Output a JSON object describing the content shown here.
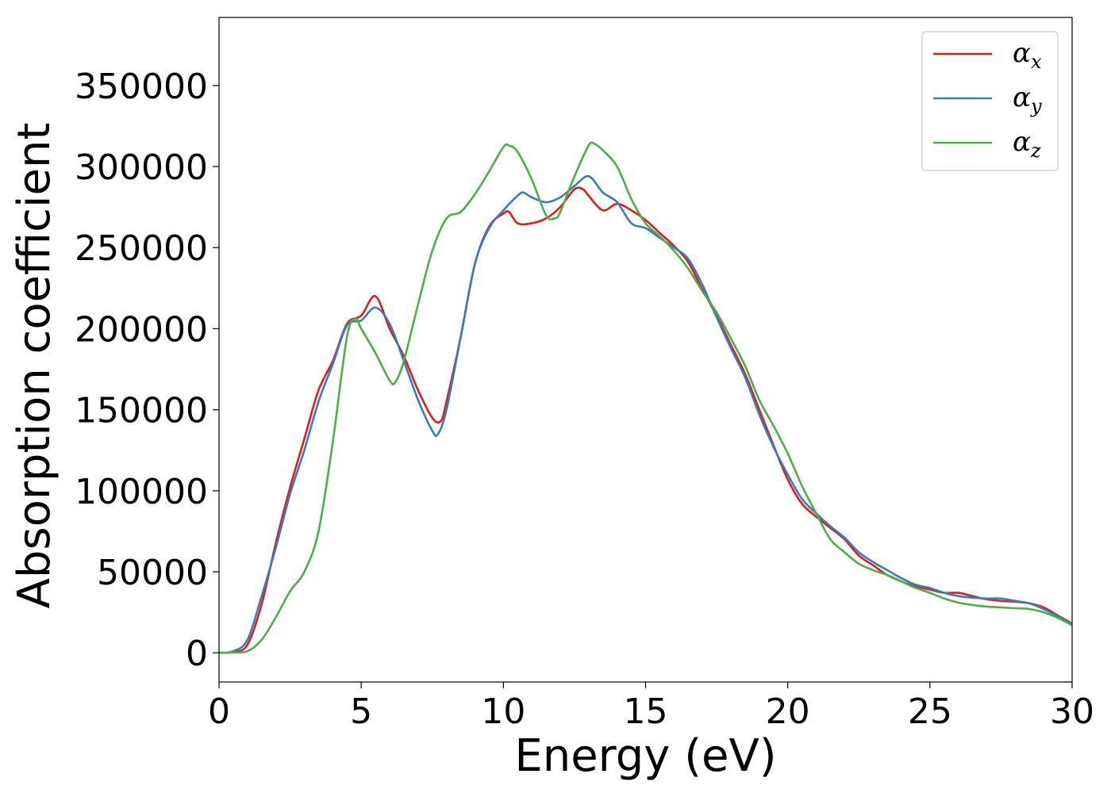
{
  "chart_data": {
    "type": "line",
    "title": "",
    "xlabel": "Energy (eV)",
    "ylabel": "Absorption coefficient",
    "xlim": [
      0,
      30
    ],
    "ylim": [
      -18000,
      392000
    ],
    "xticks": [
      0,
      5,
      10,
      15,
      20,
      25,
      30
    ],
    "xtick_labels": [
      "0",
      "5",
      "10",
      "15",
      "20",
      "25",
      "30"
    ],
    "yticks": [
      0,
      50000,
      100000,
      150000,
      200000,
      250000,
      300000,
      350000
    ],
    "ytick_labels": [
      "0",
      "50000",
      "100000",
      "150000",
      "200000",
      "250000",
      "300000",
      "350000"
    ],
    "grid": false,
    "legend_position": "top-right",
    "series": [
      {
        "name": "α_x",
        "legend_symbol": "α",
        "legend_subscript": "x",
        "color": "#e41a1c",
        "points": [
          [
            0,
            0
          ],
          [
            0.5,
            500
          ],
          [
            1,
            5000
          ],
          [
            1.5,
            30000
          ],
          [
            2,
            68000
          ],
          [
            2.5,
            102000
          ],
          [
            3,
            132000
          ],
          [
            3.5,
            162000
          ],
          [
            4,
            180000
          ],
          [
            4.5,
            203000
          ],
          [
            5,
            208000
          ],
          [
            5.5,
            220000
          ],
          [
            6,
            200000
          ],
          [
            6.5,
            183000
          ],
          [
            7,
            162000
          ],
          [
            7.5,
            145000
          ],
          [
            7.8,
            143000
          ],
          [
            8,
            155000
          ],
          [
            8.5,
            195000
          ],
          [
            9,
            240000
          ],
          [
            9.5,
            263000
          ],
          [
            10,
            271000
          ],
          [
            10.2,
            272000
          ],
          [
            10.5,
            265000
          ],
          [
            11,
            265000
          ],
          [
            11.5,
            268000
          ],
          [
            12,
            275000
          ],
          [
            12.5,
            286000
          ],
          [
            12.8,
            286000
          ],
          [
            13,
            282000
          ],
          [
            13.5,
            273000
          ],
          [
            14,
            277000
          ],
          [
            14.5,
            273000
          ],
          [
            15,
            267000
          ],
          [
            15.5,
            259000
          ],
          [
            16,
            251000
          ],
          [
            16.5,
            241000
          ],
          [
            17,
            224000
          ],
          [
            17.5,
            208000
          ],
          [
            18,
            190000
          ],
          [
            18.5,
            172000
          ],
          [
            19,
            150000
          ],
          [
            19.5,
            128000
          ],
          [
            20,
            107000
          ],
          [
            20.5,
            92000
          ],
          [
            21,
            84000
          ],
          [
            21.5,
            77000
          ],
          [
            22,
            70000
          ],
          [
            22.5,
            60000
          ],
          [
            23,
            54000
          ],
          [
            23.5,
            48000
          ],
          [
            24,
            44000
          ],
          [
            24.5,
            41000
          ],
          [
            25,
            39000
          ],
          [
            25.5,
            37000
          ],
          [
            26,
            37000
          ],
          [
            26.5,
            35000
          ],
          [
            27,
            33000
          ],
          [
            27.5,
            32000
          ],
          [
            28,
            31500
          ],
          [
            28.5,
            30500
          ],
          [
            29,
            28000
          ],
          [
            29.5,
            23000
          ],
          [
            30,
            18000
          ]
        ]
      },
      {
        "name": "α_y",
        "legend_symbol": "α",
        "legend_subscript": "y",
        "color": "#377eb8",
        "points": [
          [
            0,
            0
          ],
          [
            0.5,
            1000
          ],
          [
            1,
            8000
          ],
          [
            1.5,
            35000
          ],
          [
            2,
            65000
          ],
          [
            2.5,
            98000
          ],
          [
            3,
            125000
          ],
          [
            3.5,
            155000
          ],
          [
            4,
            178000
          ],
          [
            4.5,
            202000
          ],
          [
            5,
            205000
          ],
          [
            5.5,
            213000
          ],
          [
            6,
            203000
          ],
          [
            6.5,
            180000
          ],
          [
            7,
            156000
          ],
          [
            7.5,
            137000
          ],
          [
            7.7,
            135000
          ],
          [
            8,
            150000
          ],
          [
            8.5,
            195000
          ],
          [
            9,
            240000
          ],
          [
            9.5,
            262000
          ],
          [
            10,
            273000
          ],
          [
            10.5,
            282000
          ],
          [
            10.7,
            284000
          ],
          [
            11,
            281000
          ],
          [
            11.5,
            278000
          ],
          [
            12,
            281000
          ],
          [
            12.5,
            288000
          ],
          [
            13,
            294000
          ],
          [
            13.5,
            284000
          ],
          [
            14,
            278000
          ],
          [
            14.5,
            265000
          ],
          [
            15,
            262000
          ],
          [
            15.5,
            256000
          ],
          [
            16,
            250000
          ],
          [
            16.5,
            243000
          ],
          [
            17,
            227000
          ],
          [
            17.5,
            207000
          ],
          [
            18,
            188000
          ],
          [
            18.5,
            170000
          ],
          [
            19,
            147000
          ],
          [
            19.5,
            127000
          ],
          [
            20,
            110000
          ],
          [
            20.5,
            95000
          ],
          [
            21,
            86000
          ],
          [
            21.5,
            78000
          ],
          [
            22,
            71000
          ],
          [
            22.5,
            62000
          ],
          [
            23,
            56000
          ],
          [
            23.5,
            51000
          ],
          [
            24,
            46000
          ],
          [
            24.5,
            42000
          ],
          [
            25,
            40000
          ],
          [
            25.5,
            37000
          ],
          [
            26,
            35000
          ],
          [
            26.5,
            34000
          ],
          [
            27,
            33500
          ],
          [
            27.5,
            33500
          ],
          [
            28,
            32000
          ],
          [
            28.5,
            30500
          ],
          [
            29,
            27000
          ],
          [
            29.5,
            22500
          ],
          [
            30,
            17500
          ]
        ]
      },
      {
        "name": "α_z",
        "legend_symbol": "α",
        "legend_subscript": "z",
        "color": "#4daf4a",
        "points": [
          [
            0,
            0
          ],
          [
            0.5,
            200
          ],
          [
            1,
            1000
          ],
          [
            1.5,
            8000
          ],
          [
            2,
            22000
          ],
          [
            2.5,
            38000
          ],
          [
            3,
            50000
          ],
          [
            3.5,
            75000
          ],
          [
            4,
            130000
          ],
          [
            4.5,
            195000
          ],
          [
            4.8,
            206000
          ],
          [
            5,
            200000
          ],
          [
            5.5,
            185000
          ],
          [
            6,
            168000
          ],
          [
            6.2,
            167000
          ],
          [
            6.5,
            180000
          ],
          [
            7,
            215000
          ],
          [
            7.5,
            248000
          ],
          [
            8,
            268000
          ],
          [
            8.5,
            272000
          ],
          [
            9,
            283000
          ],
          [
            9.5,
            297000
          ],
          [
            10,
            312000
          ],
          [
            10.2,
            313000
          ],
          [
            10.5,
            309000
          ],
          [
            11,
            292000
          ],
          [
            11.5,
            270000
          ],
          [
            11.8,
            268000
          ],
          [
            12,
            272000
          ],
          [
            12.5,
            294000
          ],
          [
            13,
            313000
          ],
          [
            13.2,
            314000
          ],
          [
            13.5,
            310000
          ],
          [
            14,
            300000
          ],
          [
            14.5,
            280000
          ],
          [
            15,
            265000
          ],
          [
            15.5,
            257000
          ],
          [
            16,
            248000
          ],
          [
            16.5,
            237000
          ],
          [
            17,
            223000
          ],
          [
            17.5,
            210000
          ],
          [
            18,
            194000
          ],
          [
            18.5,
            177000
          ],
          [
            19,
            156000
          ],
          [
            19.5,
            140000
          ],
          [
            20,
            123000
          ],
          [
            20.5,
            103000
          ],
          [
            21,
            86000
          ],
          [
            21.5,
            70000
          ],
          [
            22,
            62000
          ],
          [
            22.5,
            55000
          ],
          [
            23,
            51000
          ],
          [
            23.5,
            48000
          ],
          [
            24,
            44000
          ],
          [
            24.5,
            40000
          ],
          [
            25,
            37000
          ],
          [
            25.5,
            33500
          ],
          [
            26,
            31000
          ],
          [
            26.5,
            29500
          ],
          [
            27,
            28500
          ],
          [
            27.5,
            28000
          ],
          [
            28,
            27500
          ],
          [
            28.5,
            27000
          ],
          [
            29,
            25000
          ],
          [
            29.5,
            21500
          ],
          [
            30,
            17000
          ]
        ]
      }
    ]
  }
}
